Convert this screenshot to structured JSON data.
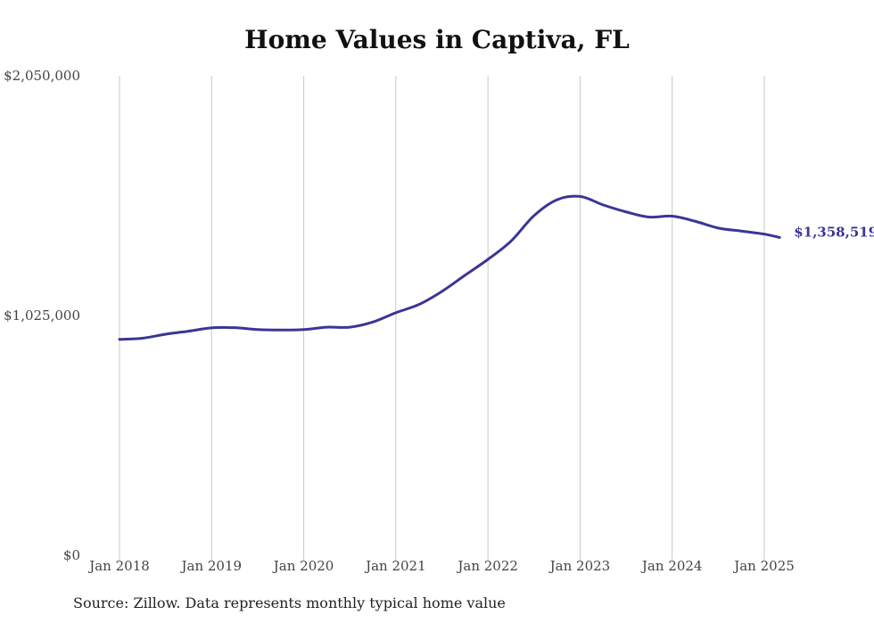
{
  "chart_data": {
    "type": "line",
    "title": "Home Values in Captiva, FL",
    "xlabel": "",
    "ylabel": "",
    "ylim": [
      0,
      2050000
    ],
    "y_ticks": [
      {
        "value": 0,
        "label": "$0"
      },
      {
        "value": 1025000,
        "label": "$1,025,000"
      },
      {
        "value": 2050000,
        "label": "$2,050,000"
      }
    ],
    "x_ticks": [
      {
        "value": "2018-01",
        "label": "Jan 2018"
      },
      {
        "value": "2019-01",
        "label": "Jan 2019"
      },
      {
        "value": "2020-01",
        "label": "Jan 2020"
      },
      {
        "value": "2021-01",
        "label": "Jan 2021"
      },
      {
        "value": "2022-01",
        "label": "Jan 2022"
      },
      {
        "value": "2023-01",
        "label": "Jan 2023"
      },
      {
        "value": "2024-01",
        "label": "Jan 2024"
      },
      {
        "value": "2025-01",
        "label": "Jan 2025"
      }
    ],
    "grid": {
      "vertical": true,
      "horizontal": false
    },
    "colors": {
      "line": "#3b3596",
      "grid": "#c8c8c8"
    },
    "end_label": "$1,358,519",
    "series": [
      {
        "x": [
          "2018-01",
          "2018-04",
          "2018-07",
          "2018-10",
          "2019-01",
          "2019-04",
          "2019-07",
          "2019-10",
          "2020-01",
          "2020-04",
          "2020-07",
          "2020-10",
          "2021-01",
          "2021-04",
          "2021-07",
          "2021-10",
          "2022-01",
          "2022-04",
          "2022-07",
          "2022-10",
          "2023-01",
          "2023-04",
          "2023-07",
          "2023-10",
          "2024-01",
          "2024-04",
          "2024-07",
          "2024-10",
          "2025-01",
          "2025-03"
        ],
        "values": [
          923000,
          928000,
          945000,
          958000,
          972000,
          973000,
          965000,
          963000,
          965000,
          975000,
          975000,
          997000,
          1037000,
          1072000,
          1128000,
          1197000,
          1265000,
          1343000,
          1452000,
          1520000,
          1534000,
          1498000,
          1468000,
          1446000,
          1450000,
          1428000,
          1399000,
          1386000,
          1373000,
          1358519
        ]
      }
    ]
  },
  "footer": {
    "source": "Source: Zillow. Data represents monthly typical home value"
  }
}
